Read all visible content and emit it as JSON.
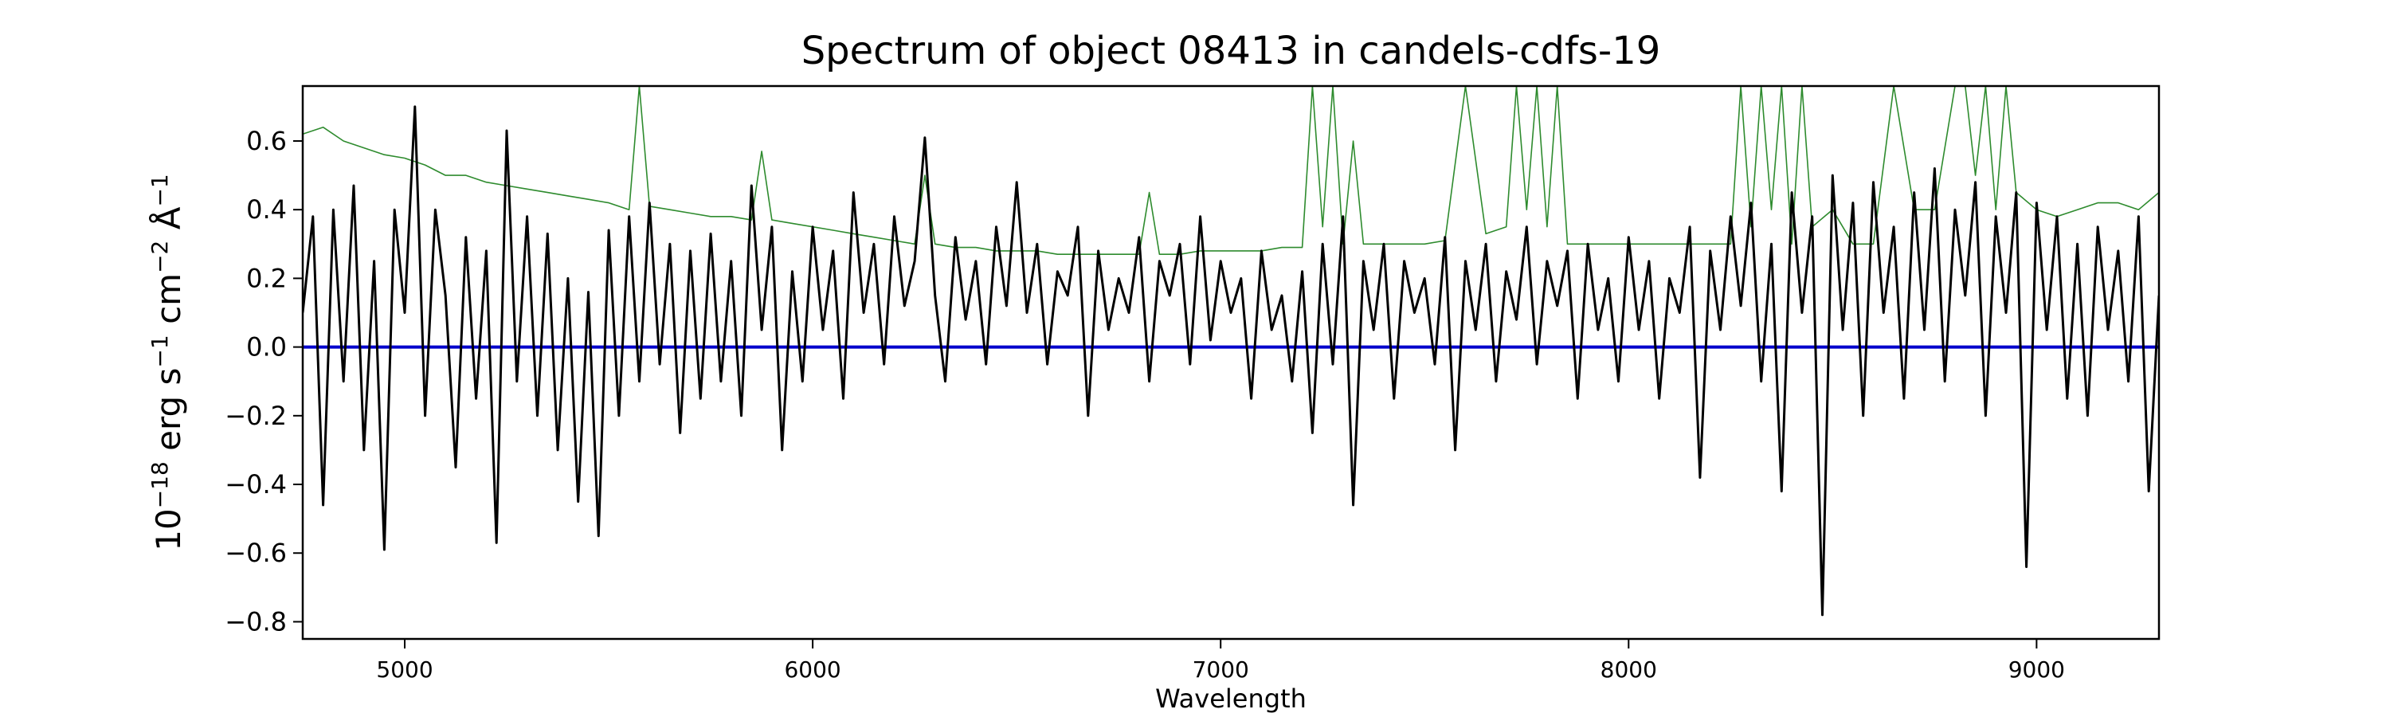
{
  "chart_data": {
    "type": "line",
    "title": "Spectrum of object 08413 in candels-cdfs-19",
    "xlabel": "Wavelength",
    "ylabel": {
      "prefix": "10",
      "exp1": "−18",
      "erg": " erg s",
      "exp2": "−1",
      "cm": " cm",
      "exp3": "−2",
      "ang": " Å",
      "exp4": "−1"
    },
    "xlim": [
      4750,
      9300
    ],
    "ylim": [
      -0.85,
      0.76
    ],
    "x_ticks": [
      5000,
      6000,
      7000,
      8000,
      9000
    ],
    "x_tick_labels": [
      "5000",
      "6000",
      "7000",
      "8000",
      "9000"
    ],
    "y_ticks": [
      0.6,
      0.4,
      0.2,
      0.0,
      -0.2,
      -0.4,
      -0.6,
      -0.8
    ],
    "y_tick_labels": [
      "0.6",
      "0.4",
      "0.2",
      "0.0",
      "−0.2",
      "−0.4",
      "−0.6",
      "−0.8"
    ],
    "grid": false,
    "legend": "none",
    "series": [
      {
        "role": "flux",
        "color": "#000000",
        "x": [
          4750,
          4775,
          4800,
          4825,
          4850,
          4875,
          4900,
          4925,
          4950,
          4975,
          5000,
          5025,
          5050,
          5075,
          5100,
          5125,
          5150,
          5175,
          5200,
          5225,
          5250,
          5275,
          5300,
          5325,
          5350,
          5375,
          5400,
          5425,
          5450,
          5475,
          5500,
          5525,
          5550,
          5575,
          5600,
          5625,
          5650,
          5675,
          5700,
          5725,
          5750,
          5775,
          5800,
          5825,
          5850,
          5875,
          5900,
          5925,
          5950,
          5975,
          6000,
          6025,
          6050,
          6075,
          6100,
          6125,
          6150,
          6175,
          6200,
          6225,
          6250,
          6275,
          6300,
          6325,
          6350,
          6375,
          6400,
          6425,
          6450,
          6475,
          6500,
          6525,
          6550,
          6575,
          6600,
          6625,
          6650,
          6675,
          6700,
          6725,
          6750,
          6775,
          6800,
          6825,
          6850,
          6875,
          6900,
          6925,
          6950,
          6975,
          7000,
          7025,
          7050,
          7075,
          7100,
          7125,
          7150,
          7175,
          7200,
          7225,
          7250,
          7275,
          7300,
          7325,
          7350,
          7375,
          7400,
          7425,
          7450,
          7475,
          7500,
          7525,
          7550,
          7575,
          7600,
          7625,
          7650,
          7675,
          7700,
          7725,
          7750,
          7775,
          7800,
          7825,
          7850,
          7875,
          7900,
          7925,
          7950,
          7975,
          8000,
          8025,
          8050,
          8075,
          8100,
          8125,
          8150,
          8175,
          8200,
          8225,
          8250,
          8275,
          8300,
          8325,
          8350,
          8375,
          8400,
          8425,
          8450,
          8475,
          8500,
          8525,
          8550,
          8575,
          8600,
          8625,
          8650,
          8675,
          8700,
          8725,
          8750,
          8775,
          8800,
          8825,
          8850,
          8875,
          8900,
          8925,
          8950,
          8975,
          9000,
          9025,
          9050,
          9075,
          9100,
          9125,
          9150,
          9175,
          9200,
          9225,
          9250,
          9275,
          9300
        ],
        "y": [
          0.1,
          0.38,
          -0.46,
          0.4,
          -0.1,
          0.47,
          -0.3,
          0.25,
          -0.59,
          0.4,
          0.1,
          0.7,
          -0.2,
          0.4,
          0.15,
          -0.35,
          0.32,
          -0.15,
          0.28,
          -0.57,
          0.63,
          -0.1,
          0.38,
          -0.2,
          0.33,
          -0.3,
          0.2,
          -0.45,
          0.16,
          -0.55,
          0.34,
          -0.2,
          0.38,
          -0.1,
          0.42,
          -0.05,
          0.3,
          -0.25,
          0.28,
          -0.15,
          0.33,
          -0.1,
          0.25,
          -0.2,
          0.47,
          0.05,
          0.35,
          -0.3,
          0.22,
          -0.1,
          0.35,
          0.05,
          0.28,
          -0.15,
          0.45,
          0.1,
          0.3,
          -0.05,
          0.38,
          0.12,
          0.25,
          0.61,
          0.15,
          -0.1,
          0.32,
          0.08,
          0.25,
          -0.05,
          0.35,
          0.12,
          0.48,
          0.1,
          0.3,
          -0.05,
          0.22,
          0.15,
          0.35,
          -0.2,
          0.28,
          0.05,
          0.2,
          0.1,
          0.32,
          -0.1,
          0.25,
          0.15,
          0.3,
          -0.05,
          0.38,
          0.02,
          0.25,
          0.1,
          0.2,
          -0.15,
          0.28,
          0.05,
          0.15,
          -0.1,
          0.22,
          -0.25,
          0.3,
          -0.05,
          0.38,
          -0.46,
          0.25,
          0.05,
          0.3,
          -0.15,
          0.25,
          0.1,
          0.2,
          -0.05,
          0.32,
          -0.3,
          0.25,
          0.05,
          0.3,
          -0.1,
          0.22,
          0.08,
          0.35,
          -0.05,
          0.25,
          0.12,
          0.28,
          -0.15,
          0.3,
          0.05,
          0.2,
          -0.1,
          0.32,
          0.05,
          0.25,
          -0.15,
          0.2,
          0.1,
          0.35,
          -0.38,
          0.28,
          0.05,
          0.38,
          0.12,
          0.42,
          -0.1,
          0.3,
          -0.42,
          0.45,
          0.1,
          0.38,
          -0.78,
          0.5,
          0.05,
          0.42,
          -0.2,
          0.48,
          0.1,
          0.35,
          -0.15,
          0.45,
          0.05,
          0.52,
          -0.1,
          0.4,
          0.15,
          0.48,
          -0.2,
          0.38,
          0.1,
          0.45,
          -0.64,
          0.42,
          0.05,
          0.38,
          -0.15,
          0.3,
          -0.2,
          0.35,
          0.05,
          0.28,
          -0.1,
          0.38,
          -0.42,
          0.15
        ]
      },
      {
        "role": "error",
        "color": "#2e8b2e",
        "x": [
          4750,
          4800,
          4850,
          4900,
          4950,
          5000,
          5050,
          5100,
          5150,
          5200,
          5250,
          5300,
          5350,
          5400,
          5450,
          5500,
          5550,
          5575,
          5600,
          5650,
          5700,
          5750,
          5800,
          5850,
          5875,
          5900,
          5950,
          6000,
          6050,
          6100,
          6150,
          6200,
          6250,
          6275,
          6300,
          6350,
          6400,
          6450,
          6500,
          6550,
          6600,
          6650,
          6700,
          6750,
          6800,
          6825,
          6850,
          6900,
          6950,
          7000,
          7050,
          7100,
          7150,
          7200,
          7225,
          7250,
          7275,
          7300,
          7325,
          7350,
          7400,
          7450,
          7500,
          7550,
          7600,
          7650,
          7700,
          7725,
          7750,
          7775,
          7800,
          7825,
          7850,
          7900,
          7950,
          8000,
          8050,
          8100,
          8150,
          8200,
          8250,
          8275,
          8300,
          8325,
          8350,
          8375,
          8400,
          8425,
          8450,
          8500,
          8550,
          8600,
          8650,
          8700,
          8750,
          8800,
          8825,
          8850,
          8875,
          8900,
          8925,
          8950,
          9000,
          9050,
          9100,
          9150,
          9200,
          9250,
          9300
        ],
        "y": [
          0.62,
          0.64,
          0.6,
          0.58,
          0.56,
          0.55,
          0.53,
          0.5,
          0.5,
          0.48,
          0.47,
          0.46,
          0.45,
          0.44,
          0.43,
          0.42,
          0.4,
          0.76,
          0.41,
          0.4,
          0.39,
          0.38,
          0.38,
          0.37,
          0.57,
          0.37,
          0.36,
          0.35,
          0.34,
          0.33,
          0.32,
          0.31,
          0.3,
          0.5,
          0.3,
          0.29,
          0.29,
          0.28,
          0.28,
          0.28,
          0.27,
          0.27,
          0.27,
          0.27,
          0.27,
          0.45,
          0.27,
          0.27,
          0.28,
          0.28,
          0.28,
          0.28,
          0.29,
          0.29,
          0.76,
          0.35,
          0.76,
          0.3,
          0.6,
          0.3,
          0.3,
          0.3,
          0.3,
          0.31,
          0.76,
          0.33,
          0.35,
          0.76,
          0.4,
          0.76,
          0.35,
          0.76,
          0.3,
          0.3,
          0.3,
          0.3,
          0.3,
          0.3,
          0.3,
          0.3,
          0.3,
          0.76,
          0.35,
          0.76,
          0.4,
          0.76,
          0.3,
          0.76,
          0.35,
          0.4,
          0.3,
          0.3,
          0.76,
          0.4,
          0.4,
          0.76,
          0.76,
          0.5,
          0.76,
          0.4,
          0.76,
          0.45,
          0.4,
          0.38,
          0.4,
          0.42,
          0.42,
          0.4,
          0.45
        ]
      },
      {
        "role": "continuum",
        "color": "#0000cc",
        "x": [
          4750,
          9300
        ],
        "y": [
          0.0,
          0.0
        ]
      }
    ]
  }
}
